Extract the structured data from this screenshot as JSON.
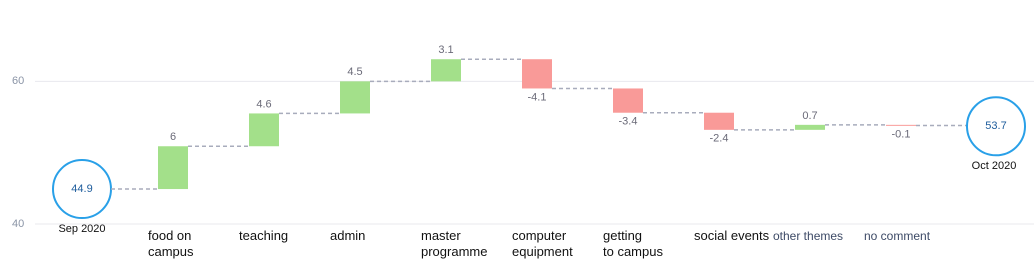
{
  "chart_data": {
    "type": "waterfall",
    "start": {
      "label": "Sep 2020",
      "value": 44.9
    },
    "end": {
      "label": "Oct 2020",
      "value": 53.7
    },
    "categories": [
      "food on\ncampus",
      "teaching",
      "admin",
      "master\nprogramme",
      "computer\nequipment",
      "getting\nto campus",
      "social events",
      "other themes",
      "no comment"
    ],
    "values": [
      6,
      4.6,
      4.5,
      3.1,
      -4.1,
      -3.4,
      -2.4,
      0.7,
      -0.1
    ],
    "positive_color": "#a3e08a",
    "negative_color": "#f99a98",
    "total_color": "#29a0e8",
    "ylim": [
      40,
      70
    ],
    "yticks": [
      40,
      60
    ],
    "grid": true
  }
}
